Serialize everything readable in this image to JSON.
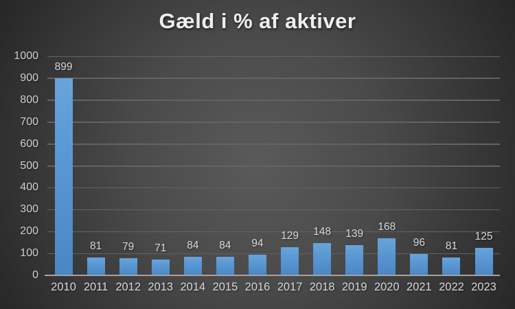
{
  "chart_data": {
    "type": "bar",
    "title": "Gæld i % af aktiver",
    "categories": [
      "2010",
      "2011",
      "2012",
      "2013",
      "2014",
      "2015",
      "2016",
      "2017",
      "2018",
      "2019",
      "2020",
      "2021",
      "2022",
      "2023"
    ],
    "values": [
      899,
      81,
      79,
      71,
      84,
      84,
      94,
      129,
      148,
      139,
      168,
      96,
      81,
      125
    ],
    "xlabel": "",
    "ylabel": "",
    "ylim": [
      0,
      1000
    ],
    "yticks": [
      0,
      100,
      200,
      300,
      400,
      500,
      600,
      700,
      800,
      900,
      1000
    ],
    "grid": true,
    "legend": false,
    "data_labels": true,
    "colors": {
      "bar_gradient_top": "#68a4db",
      "bar_gradient_mid": "#5b99d4",
      "bar_gradient_bottom": "#4a86c4",
      "title_color": "#efefef",
      "label_color": "#d9d9d9",
      "tick_color": "#d2d2d2",
      "gridline_color": "#636363",
      "axis_line_color": "#a3a3a3",
      "background_center": "#5a5a5a",
      "background_mid": "#4a4a4a",
      "background_edge": "#262626"
    }
  }
}
